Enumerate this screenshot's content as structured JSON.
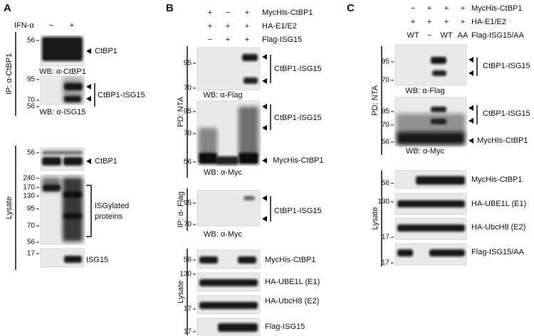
{
  "panels": [
    {
      "letter": "A",
      "rows": [
        {
          "label": "IFN-α",
          "lanes": [
            "−",
            "+"
          ]
        }
      ],
      "sections": [
        "IP: α-CtBP1",
        "Lysate"
      ],
      "blots": [
        {
          "markers": [
            "56"
          ],
          "labels": [
            "CtBP1"
          ],
          "wb": "WB: α-CtBP1"
        },
        {
          "markers": [
            "95",
            "70",
            "56"
          ],
          "labels": [
            "CtBP1-ISG15"
          ],
          "wb": "WB: α-ISG15"
        },
        {
          "markers": [
            "56"
          ],
          "labels": [
            "CtBP1"
          ]
        },
        {
          "markers": [
            "240",
            "170",
            "130",
            "95",
            "70",
            "56"
          ],
          "labels": [
            "ISGylated",
            "proteins"
          ]
        },
        {
          "markers": [
            "17"
          ],
          "labels": [
            "ISG15"
          ]
        }
      ]
    },
    {
      "letter": "B",
      "rows": [
        {
          "lanes": [
            "+",
            "−",
            "+"
          ],
          "label": "MycHis-CtBP1"
        },
        {
          "lanes": [
            "+",
            "+",
            "+"
          ],
          "label": "HA-E1/E2"
        },
        {
          "lanes": [
            "−",
            "+",
            "+"
          ],
          "label": "Flag-ISG15"
        }
      ],
      "sections": [
        "PD: NTA",
        "IP: α- Flag",
        "Lysate"
      ],
      "blots": [
        {
          "markers": [
            "95",
            "70"
          ],
          "labels": [
            "CtBP1-ISG15"
          ],
          "wb": "WB: α-Flag"
        },
        {
          "markers": [
            "95",
            "70",
            "56"
          ],
          "labels": [
            "CtBP1-ISG15",
            "MycHis-CtBP1"
          ],
          "wb": "WB: α-Myc"
        },
        {
          "markers": [
            "95",
            "70"
          ],
          "labels": [
            "CtBP1-ISG15"
          ],
          "wb": "WB: α-Myc"
        },
        {
          "markers": [
            "56"
          ],
          "labels": [
            "MycHis-CtBP1"
          ]
        },
        {
          "markers": [
            "130"
          ],
          "labels": [
            "HA-UBE1L (E1)"
          ]
        },
        {
          "markers": [
            "17"
          ],
          "labels": [
            "HA-UbcH8 (E2)"
          ]
        },
        {
          "markers": [
            "17"
          ],
          "labels": [
            "Flag-ISG15"
          ]
        }
      ]
    },
    {
      "letter": "C",
      "rows": [
        {
          "lanes": [
            "−",
            "+",
            "+",
            "+"
          ],
          "label": "MycHis-CtBP1"
        },
        {
          "lanes": [
            "+",
            "+",
            "+",
            "+"
          ],
          "label": "HA-E1/E2"
        },
        {
          "lanes": [
            "WT",
            "−",
            "WT",
            "AA"
          ],
          "label": "Flag-ISG15/AA"
        }
      ],
      "sections": [
        "PD: NTA",
        "Lysate"
      ],
      "blots": [
        {
          "markers": [
            "95",
            "70"
          ],
          "labels": [
            "CtBP1-ISG15"
          ],
          "wb": "WB: α-Flag"
        },
        {
          "markers": [
            "95",
            "70",
            "56"
          ],
          "labels": [
            "CtBP1-ISG15",
            "MycHis-CtBP1"
          ],
          "wb": "WB: α-Myc"
        },
        {
          "markers": [
            "56"
          ],
          "labels": [
            "MycHis-CtBP1"
          ]
        },
        {
          "markers": [
            "130"
          ],
          "labels": [
            "HA-UBE1L (E1)"
          ]
        },
        {
          "markers": [
            "17"
          ],
          "labels": [
            "HA-UbcH8 (E2)"
          ]
        },
        {
          "markers": [
            "17"
          ],
          "labels": [
            "Flag-ISG15/AA"
          ]
        }
      ]
    }
  ]
}
